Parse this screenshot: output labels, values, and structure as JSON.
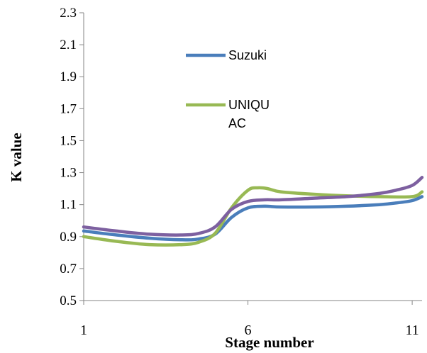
{
  "chart_data": {
    "type": "line",
    "xlabel": "Stage number",
    "ylabel": "K value",
    "xlim": [
      1,
      11.3
    ],
    "ylim": [
      0.5,
      2.3
    ],
    "x_ticks": [
      1,
      6,
      11
    ],
    "y_ticks": [
      0.5,
      0.7,
      0.9,
      1.1,
      1.3,
      1.5,
      1.7,
      1.9,
      2.1,
      2.3
    ],
    "grid": false,
    "legend_position": "top-center",
    "series": [
      {
        "name": "Suzuki",
        "color": "#4a7ebb",
        "x": [
          1,
          2,
          3,
          4,
          4.5,
          5,
          5.5,
          6,
          6.5,
          7,
          8,
          9,
          10,
          10.5,
          11,
          11.3
        ],
        "y": [
          0.935,
          0.91,
          0.89,
          0.88,
          0.885,
          0.915,
          1.02,
          1.08,
          1.09,
          1.085,
          1.085,
          1.09,
          1.1,
          1.11,
          1.125,
          1.15
        ]
      },
      {
        "name": "UNIQU AC",
        "legend_lines": [
          "UNIQU",
          "AC"
        ],
        "color": "#98b954",
        "x": [
          1,
          2,
          3,
          4,
          4.5,
          5,
          5.5,
          6,
          6.3,
          6.6,
          7,
          8,
          9,
          10,
          11,
          11.3
        ],
        "y": [
          0.9,
          0.87,
          0.85,
          0.85,
          0.865,
          0.92,
          1.08,
          1.19,
          1.205,
          1.2,
          1.18,
          1.165,
          1.155,
          1.15,
          1.15,
          1.18
        ]
      },
      {
        "name": "",
        "color": "#7d60a0",
        "x": [
          1,
          2,
          3,
          4,
          4.5,
          5,
          5.5,
          6,
          6.5,
          7,
          8,
          9,
          10,
          10.5,
          11,
          11.3
        ],
        "y": [
          0.96,
          0.935,
          0.915,
          0.91,
          0.92,
          0.96,
          1.07,
          1.12,
          1.13,
          1.13,
          1.14,
          1.15,
          1.17,
          1.19,
          1.22,
          1.27
        ]
      }
    ]
  }
}
